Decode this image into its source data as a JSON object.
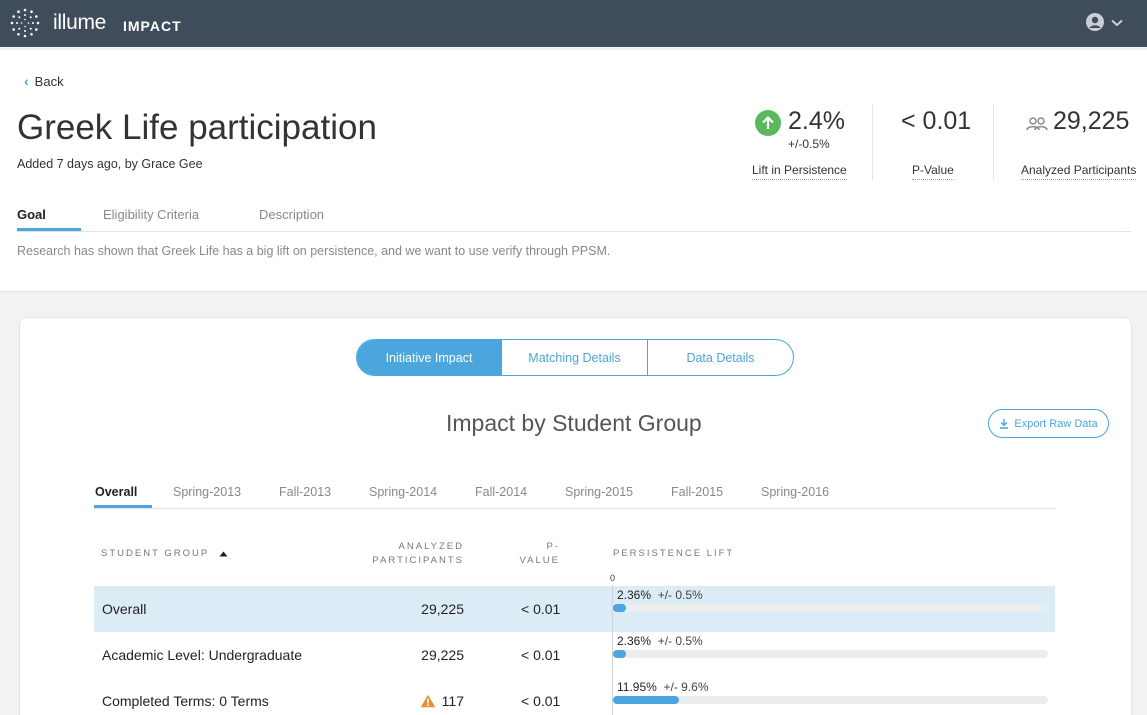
{
  "app": {
    "brand": "illume",
    "product": "IMPACT",
    "accent": "#4aa6dc",
    "topbar_color": "#3f4c5b"
  },
  "nav": {
    "back_label": "Back"
  },
  "initiative": {
    "title": "Greek Life participation",
    "added": "Added 7 days ago, by Grace Gee"
  },
  "stats": {
    "lift": {
      "value": "2.4%",
      "ci": "+/-0.5%",
      "label": "Lift in Persistence",
      "icon": "arrow-up-circle-icon",
      "color": "#5cb85c"
    },
    "pvalue": {
      "value": "< 0.01",
      "label": "P-Value"
    },
    "participants": {
      "value": "29,225",
      "label": "Analyzed Participants",
      "icon": "people-icon"
    }
  },
  "tabs": {
    "items": [
      {
        "label": "Goal"
      },
      {
        "label": "Eligibility Criteria"
      },
      {
        "label": "Description"
      }
    ],
    "active": "Goal",
    "goal_text": "Research has shown that Greek Life has a big lift on persistence, and we want to use verify through PPSM."
  },
  "segments": {
    "items": [
      {
        "label": "Initiative Impact"
      },
      {
        "label": "Matching Details"
      },
      {
        "label": "Data Details"
      }
    ],
    "active": "Initiative Impact"
  },
  "impact": {
    "title": "Impact by Student Group",
    "export_label": "Export Raw Data",
    "terms": [
      {
        "label": "Overall"
      },
      {
        "label": "Spring-2013"
      },
      {
        "label": "Fall-2013"
      },
      {
        "label": "Spring-2014"
      },
      {
        "label": "Fall-2014"
      },
      {
        "label": "Spring-2015"
      },
      {
        "label": "Fall-2015"
      },
      {
        "label": "Spring-2016"
      }
    ],
    "active_term": "Overall",
    "columns": {
      "student_group": "STUDENT GROUP",
      "sort_icon": "sort-asc-icon",
      "analyzed_1": "ANALYZED",
      "analyzed_2": "PARTICIPANTS",
      "pvalue_1": "P-",
      "pvalue_2": "VALUE",
      "lift": "PERSISTENCE LIFT"
    },
    "axis_zero": "0",
    "rows": [
      {
        "name": "Overall",
        "participants": "29,225",
        "warning": false,
        "pvalue": "< 0.01",
        "lift": "2.36%",
        "ci": "+/- 0.5%",
        "lift_pct": 2.36,
        "highlight": true
      },
      {
        "name": "Academic Level: Undergraduate",
        "participants": "29,225",
        "warning": false,
        "pvalue": "< 0.01",
        "lift": "2.36%",
        "ci": "+/- 0.5%",
        "lift_pct": 2.36,
        "highlight": false
      },
      {
        "name": "Completed Terms: 0 Terms",
        "participants": "117",
        "warning": true,
        "pvalue": "< 0.01",
        "lift": "11.95%",
        "ci": "+/- 9.6%",
        "lift_pct": 11.95,
        "highlight": false
      }
    ]
  }
}
